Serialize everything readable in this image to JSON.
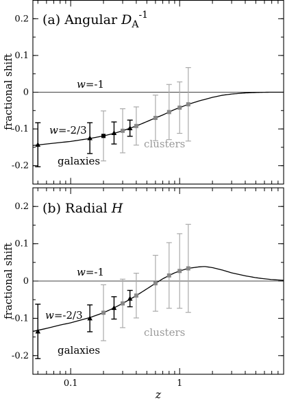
{
  "chart_data": [
    {
      "type": "line",
      "panel_label": "(a) Angular ",
      "panel_symbol": "D",
      "panel_subscript": "A",
      "panel_superscript": "-1",
      "ylabel": "fractional shift",
      "xlabel": "",
      "xscale": "log",
      "xlim": [
        0.045,
        9.0
      ],
      "ylim": [
        -0.25,
        0.25
      ],
      "xticks": [
        {
          "value": 0.1,
          "label": ""
        },
        {
          "value": 1,
          "label": ""
        }
      ],
      "yticks": [
        {
          "value": 0.2,
          "label": "0.2"
        },
        {
          "value": 0.1,
          "label": "0.1"
        },
        {
          "value": 0,
          "label": "0"
        },
        {
          "value": -0.1,
          "label": "-0.1"
        },
        {
          "value": -0.2,
          "label": "-0.2"
        }
      ],
      "reference_line": {
        "y": 0,
        "label_var": "w",
        "label_val": "=-1"
      },
      "curve_label": {
        "var": "w",
        "val": "=-2/3"
      },
      "curve": {
        "x": [
          0.045,
          0.06,
          0.08,
          0.1,
          0.15,
          0.2,
          0.25,
          0.3,
          0.35,
          0.4,
          0.5,
          0.6,
          0.7,
          0.8,
          0.9,
          1.0,
          1.2,
          1.5,
          2.0,
          2.5,
          3.0,
          4.0,
          5.0,
          6.0,
          7.0,
          9.0
        ],
        "y": [
          -0.145,
          -0.141,
          -0.137,
          -0.134,
          -0.126,
          -0.119,
          -0.112,
          -0.105,
          -0.098,
          -0.092,
          -0.08,
          -0.07,
          -0.062,
          -0.054,
          -0.047,
          -0.042,
          -0.033,
          -0.024,
          -0.014,
          -0.008,
          -0.005,
          -0.002,
          -0.0008,
          -0.0002,
          0.0,
          0.0
        ]
      },
      "galaxies": {
        "label": "galaxies",
        "points": [
          {
            "x": 0.05,
            "y": -0.143,
            "err": 0.06,
            "marker": "triangle"
          },
          {
            "x": 0.15,
            "y": -0.125,
            "err": 0.042,
            "marker": "triangle"
          },
          {
            "x": 0.2,
            "y": -0.119,
            "err": 0,
            "marker": "square"
          },
          {
            "x": 0.25,
            "y": -0.111,
            "err": 0.03,
            "marker": "triangle"
          },
          {
            "x": 0.35,
            "y": -0.098,
            "err": 0.022,
            "marker": "triangle"
          }
        ]
      },
      "clusters": {
        "label": "clusters",
        "points": [
          {
            "x": 0.2,
            "err": 0.068
          },
          {
            "x": 0.3,
            "err": 0.06
          },
          {
            "x": 0.4,
            "err": 0.052
          },
          {
            "x": 0.6,
            "err": 0.062
          },
          {
            "x": 0.8,
            "err": 0.075
          },
          {
            "x": 1.0,
            "err": 0.07
          },
          {
            "x": 1.2,
            "err": 0.1
          }
        ]
      }
    },
    {
      "type": "line",
      "panel_label": "(b) Radial ",
      "panel_symbol": "H",
      "panel_subscript": "",
      "panel_superscript": "",
      "ylabel": "fractional shift",
      "xlabel": "z",
      "xscale": "log",
      "xlim": [
        0.045,
        9.0
      ],
      "ylim": [
        -0.25,
        0.25
      ],
      "xticks": [
        {
          "value": 0.1,
          "label": "0.1"
        },
        {
          "value": 1,
          "label": "1"
        }
      ],
      "yticks": [
        {
          "value": 0.2,
          "label": "0.2"
        },
        {
          "value": 0.1,
          "label": "0.1"
        },
        {
          "value": 0,
          "label": "0"
        },
        {
          "value": -0.1,
          "label": "-0.1"
        },
        {
          "value": -0.2,
          "label": "-0.2"
        }
      ],
      "reference_line": {
        "y": 0,
        "label_var": "w",
        "label_val": "=-1"
      },
      "curve_label": {
        "var": "w",
        "val": "=-2/3"
      },
      "curve": {
        "x": [
          0.045,
          0.06,
          0.08,
          0.1,
          0.15,
          0.2,
          0.25,
          0.3,
          0.35,
          0.4,
          0.5,
          0.6,
          0.7,
          0.8,
          0.9,
          1.0,
          1.2,
          1.5,
          1.7,
          2.0,
          2.5,
          3.0,
          4.0,
          5.0,
          6.0,
          7.0,
          9.0
        ],
        "y": [
          -0.135,
          -0.127,
          -0.118,
          -0.112,
          -0.098,
          -0.085,
          -0.072,
          -0.06,
          -0.049,
          -0.039,
          -0.021,
          -0.006,
          0.006,
          0.015,
          0.022,
          0.027,
          0.034,
          0.038,
          0.039,
          0.036,
          0.029,
          0.022,
          0.014,
          0.009,
          0.006,
          0.004,
          0.002
        ]
      },
      "galaxies": {
        "label": "galaxies",
        "points": [
          {
            "x": 0.05,
            "y": -0.135,
            "err": 0.073,
            "marker": "triangle"
          },
          {
            "x": 0.15,
            "y": -0.1,
            "err": 0.036,
            "marker": "triangle"
          },
          {
            "x": 0.25,
            "y": -0.072,
            "err": 0.03,
            "marker": "triangle"
          },
          {
            "x": 0.35,
            "y": -0.047,
            "err": 0.022,
            "marker": "triangle"
          }
        ]
      },
      "clusters": {
        "label": "clusters",
        "points": [
          {
            "x": 0.2,
            "err": 0.075
          },
          {
            "x": 0.3,
            "err": 0.065
          },
          {
            "x": 0.4,
            "err": 0.06
          },
          {
            "x": 0.6,
            "err": 0.075
          },
          {
            "x": 0.8,
            "err": 0.088
          },
          {
            "x": 1.0,
            "err": 0.1
          },
          {
            "x": 1.2,
            "err": 0.118
          }
        ]
      }
    }
  ]
}
